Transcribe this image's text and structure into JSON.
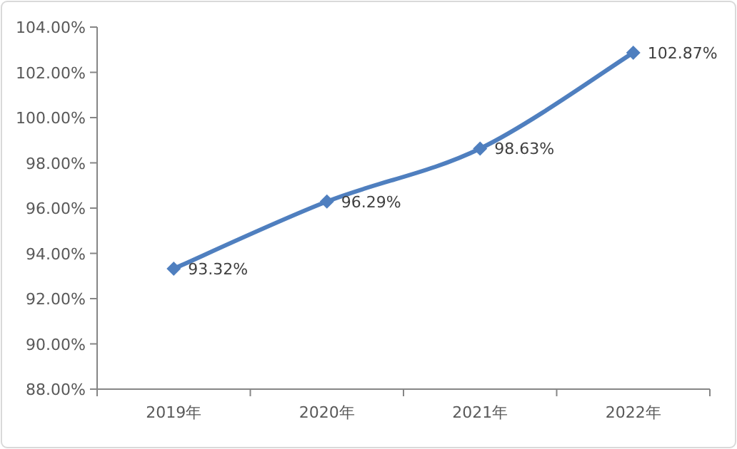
{
  "chart_data": {
    "type": "line",
    "categories": [
      "2019年",
      "2020年",
      "2021年",
      "2022年"
    ],
    "series": [
      {
        "color": "#4f7fbf",
        "values": [
          93.32,
          96.29,
          98.63,
          102.87
        ],
        "value_labels": [
          "93.32%",
          "96.29%",
          "98.63%",
          "102.87%"
        ]
      }
    ],
    "ylim": [
      88,
      104
    ],
    "yticks": [
      {
        "value": 88,
        "label": "88.00%"
      },
      {
        "value": 90,
        "label": "90.00%"
      },
      {
        "value": 92,
        "label": "92.00%"
      },
      {
        "value": 94,
        "label": "94.00%"
      },
      {
        "value": 96,
        "label": "96.00%"
      },
      {
        "value": 98,
        "label": "98.00%"
      },
      {
        "value": 100,
        "label": "100.00%"
      },
      {
        "value": 102,
        "label": "102.00%"
      },
      {
        "value": 104,
        "label": "104.00%"
      }
    ],
    "marker": "diamond",
    "line_style": "solid",
    "grid": false
  }
}
